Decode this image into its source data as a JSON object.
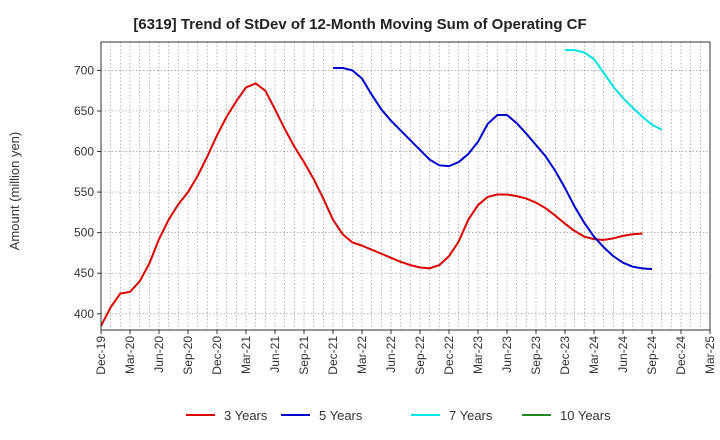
{
  "chart_data": {
    "type": "line",
    "title": "[6319]  Trend of StDev of 12-Month Moving Sum of Operating CF",
    "xlabel": "",
    "ylabel": "Amount (million yen)",
    "ylim": [
      380,
      735
    ],
    "yticks": [
      400,
      450,
      500,
      550,
      600,
      650,
      700
    ],
    "xtick_labels": [
      "Dec-19",
      "Mar-20",
      "Jun-20",
      "Sep-20",
      "Dec-20",
      "Mar-21",
      "Jun-21",
      "Sep-21",
      "Dec-21",
      "Mar-22",
      "Jun-22",
      "Sep-22",
      "Dec-22",
      "Mar-23",
      "Jun-23",
      "Sep-23",
      "Dec-23",
      "Mar-24",
      "Jun-24",
      "Sep-24",
      "Dec-24",
      "Mar-25"
    ],
    "grid": true,
    "legend_position": "bottom",
    "series": [
      {
        "name": "3 Years",
        "color": "#dd0000",
        "start_index": 0,
        "values": [
          385,
          408,
          425,
          427,
          440,
          462,
          492,
          516,
          535,
          550,
          570,
          594,
          620,
          643,
          662,
          679,
          684,
          675,
          652,
          628,
          606,
          587,
          566,
          542,
          516,
          498,
          488,
          484,
          479,
          474,
          469,
          464,
          460,
          457,
          456,
          460,
          471,
          489,
          516,
          534,
          544,
          547,
          547,
          545,
          542,
          537,
          530,
          521,
          511,
          502,
          495,
          492,
          491,
          493,
          496,
          498,
          499
        ]
      },
      {
        "name": "5 Years",
        "color": "#0000cc",
        "start_index": 24,
        "values": [
          703,
          703,
          700,
          690,
          670,
          652,
          638,
          626,
          614,
          602,
          590,
          583,
          582,
          587,
          597,
          612,
          634,
          645,
          645,
          635,
          622,
          608,
          594,
          576,
          555,
          532,
          512,
          495,
          482,
          471,
          463,
          458,
          456,
          455
        ]
      },
      {
        "name": "7 Years",
        "color": "#00e5e5",
        "start_index": 48,
        "values": [
          725,
          725,
          722,
          714,
          697,
          680,
          666,
          654,
          643,
          633,
          627
        ]
      },
      {
        "name": "10 Years",
        "color": "#228822",
        "start_index": 0,
        "values": []
      }
    ]
  }
}
